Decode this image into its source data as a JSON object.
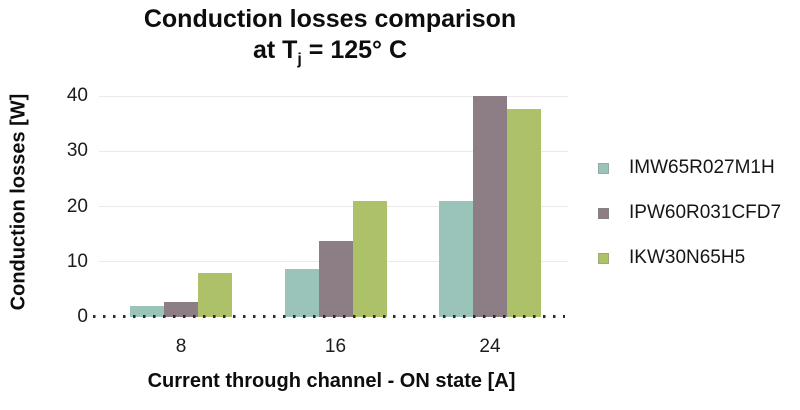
{
  "title": {
    "line1": "Conduction losses comparison",
    "line2_prefix": "at T",
    "line2_sub": "j",
    "line2_suffix": " = 125° C"
  },
  "chart_data": {
    "type": "bar",
    "title": "Conduction losses comparison at Tj = 125° C",
    "categories": [
      "8",
      "16",
      "24"
    ],
    "series": [
      {
        "name": "IMW65R027M1H",
        "color": "#9ac4b9",
        "values": [
          2.0,
          8.7,
          21.0
        ]
      },
      {
        "name": "IPW60R031CFD7",
        "color": "#8d7e85",
        "values": [
          2.8,
          13.8,
          40.0
        ]
      },
      {
        "name": "IKW30N65H5",
        "color": "#adc169",
        "values": [
          8.0,
          21.0,
          37.6
        ]
      }
    ],
    "xlabel": "Current through channel - ON state [A]",
    "ylabel": "Conduction losses [W]",
    "ylim": [
      0,
      40
    ],
    "yticks": [
      0,
      10,
      20,
      30,
      40
    ],
    "grid": true,
    "zero_line_style": "dotted",
    "legend_position": "right",
    "gridline_color": "#ebe9ea"
  }
}
